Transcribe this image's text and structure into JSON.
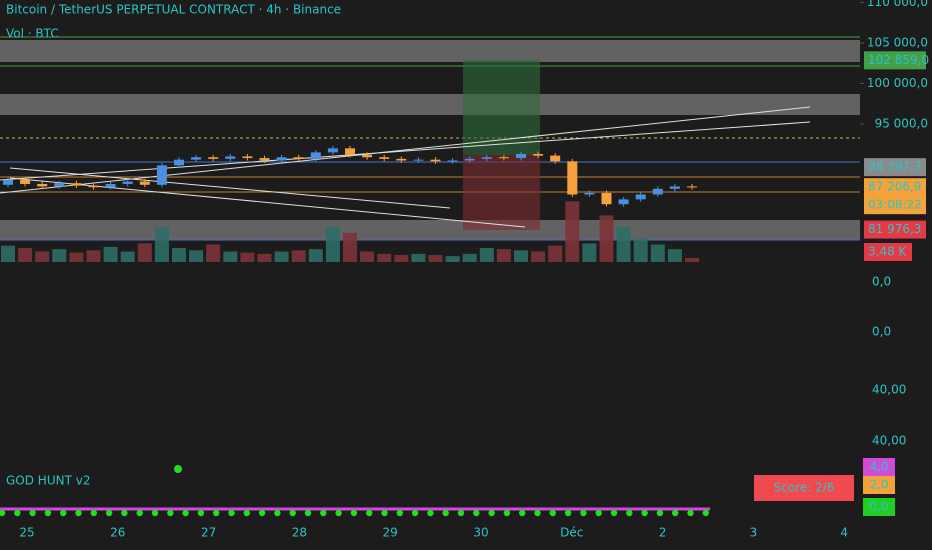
{
  "header": {
    "title": "Bitcoin / TetherUS PERPETUAL CONTRACT · 4h · Binance",
    "volume_label": "Vol · BTC"
  },
  "chart_data": {
    "type": "candlestick",
    "ylim": [
      76000,
      110300
    ],
    "yticks": [
      {
        "value": 110000,
        "label": "110 000,0"
      },
      {
        "value": 105000,
        "label": "105 000,0"
      },
      {
        "value": 100000,
        "label": "100 000,0"
      },
      {
        "value": 95000,
        "label": "95 000,0"
      }
    ],
    "up_color": "#4a8fe0",
    "down_color": "#f5a23a",
    "open": [
      87500,
      88100,
      87600,
      87300,
      87700,
      87400,
      87200,
      87600,
      87900,
      87500,
      89900,
      90600,
      90900,
      90700,
      91000,
      90800,
      90500,
      90900,
      90700,
      91500,
      92000,
      91200,
      90900,
      90700,
      90500,
      90600,
      90400,
      90500,
      90700,
      90900,
      90800,
      91300,
      91100,
      90400,
      86300,
      86500,
      85100,
      85700,
      86300,
      87000,
      87300
    ],
    "close": [
      88100,
      87600,
      87300,
      87700,
      87400,
      87200,
      87600,
      87900,
      87500,
      89900,
      90600,
      90900,
      90700,
      91000,
      90800,
      90500,
      90900,
      90700,
      91500,
      92000,
      91200,
      90900,
      90700,
      90500,
      90600,
      90400,
      90500,
      90700,
      90900,
      90800,
      91300,
      91100,
      90400,
      86300,
      86500,
      85100,
      85700,
      86300,
      87000,
      87300,
      87200
    ],
    "high": [
      88400,
      88400,
      87900,
      88000,
      88000,
      87700,
      87900,
      88200,
      88200,
      90200,
      90900,
      91200,
      91200,
      91300,
      91300,
      91100,
      91200,
      91200,
      91800,
      92300,
      92300,
      91500,
      91200,
      91000,
      90900,
      90900,
      90800,
      91000,
      91200,
      91200,
      91600,
      91600,
      91400,
      90700,
      86800,
      86800,
      86000,
      86600,
      87300,
      87600,
      87600
    ],
    "low": [
      87200,
      87300,
      87000,
      87000,
      87100,
      86900,
      86900,
      87300,
      87200,
      87200,
      89600,
      90300,
      90400,
      90400,
      90500,
      90200,
      90200,
      90400,
      90400,
      91200,
      90900,
      90600,
      90400,
      90200,
      90200,
      90100,
      90100,
      90200,
      90400,
      90500,
      90500,
      90800,
      90100,
      86000,
      86000,
      84800,
      84800,
      85400,
      86000,
      86700,
      86900
    ],
    "price_labels": [
      {
        "value": 102859,
        "label": "102 859,0",
        "color": "#43a047"
      },
      {
        "value": 88397.3,
        "label": "88 397,3",
        "color": "#8a8a8a"
      },
      {
        "value": 87206.9,
        "label": "87 206,9",
        "color": "#f5a23a",
        "countdown": "03:08:22"
      },
      {
        "value": 81976.3,
        "label": "81 976,3",
        "color": "#e53945"
      }
    ],
    "volume": {
      "ylim": [
        0,
        60000
      ],
      "up_color": "#2f6e66",
      "down_color": "#7d3438",
      "last_label": "3,48 K",
      "values": [
        14000,
        12000,
        9000,
        11000,
        8000,
        10000,
        13000,
        9000,
        16000,
        30000,
        12000,
        10000,
        15000,
        9000,
        8000,
        7000,
        9000,
        10000,
        11000,
        30000,
        25000,
        9000,
        7000,
        6000,
        7000,
        6000,
        5000,
        7000,
        12000,
        11000,
        10000,
        9000,
        14000,
        52000,
        16000,
        40000,
        30000,
        20000,
        15000,
        11000,
        3480
      ]
    },
    "x_labels": [
      "25",
      "26",
      "27",
      "28",
      "29",
      "30",
      "Déc",
      "2",
      "3",
      "4"
    ]
  },
  "panel_labels": [
    "0,0",
    "0,0",
    "40,00",
    "40,00"
  ],
  "indicator": {
    "name": "GOD HUNT v2",
    "score": "Score: 2/6",
    "levels": [
      "4,0",
      "2,0",
      "0,0"
    ]
  }
}
